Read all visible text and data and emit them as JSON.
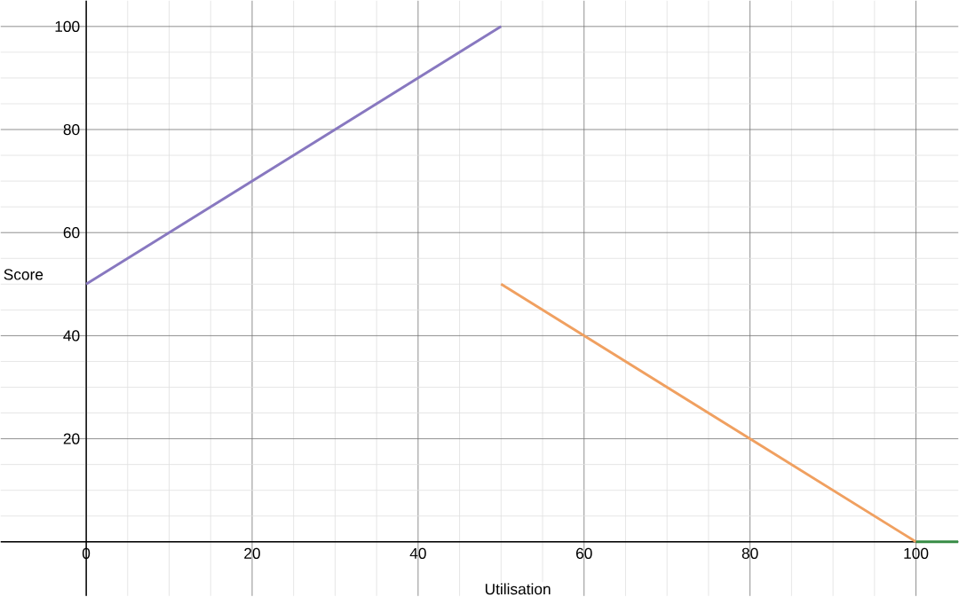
{
  "chart_data": {
    "type": "line",
    "xlabel": "Utilisation",
    "ylabel": "Score",
    "xlim": [
      -10.3,
      105.1
    ],
    "ylim": [
      -10.5,
      105
    ],
    "xticks": [
      0,
      20,
      40,
      60,
      80,
      100
    ],
    "yticks": [
      {
        "value": 0,
        "label": null
      },
      20,
      40,
      60,
      80,
      100
    ],
    "grid": true,
    "marker": "none",
    "line_style": "solid",
    "series": [
      {
        "color": "#8878c0",
        "x": [
          0,
          50
        ],
        "values": [
          50,
          100
        ]
      },
      {
        "color": "#f0a060",
        "x": [
          50,
          100
        ],
        "values": [
          50,
          0
        ]
      },
      {
        "color": "#388c46",
        "x": [
          100,
          105.1
        ],
        "values": [
          0,
          0
        ]
      }
    ]
  }
}
